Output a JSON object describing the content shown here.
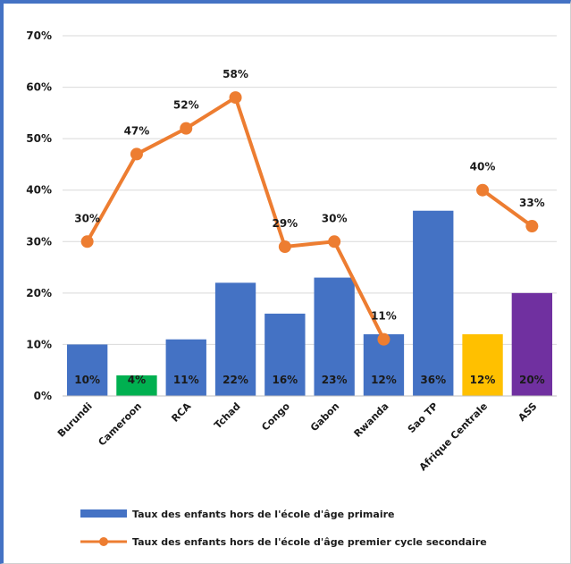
{
  "chart_data": {
    "type": "bar",
    "categories": [
      "Burundi",
      "Cameroon",
      "RCA",
      "Tchad",
      "Congo",
      "Gabon",
      "Rwanda",
      "Sao TP",
      "Afrique Centrale",
      "ASS"
    ],
    "ylim": [
      0,
      70
    ],
    "yticks": [
      "0%",
      "10%",
      "20%",
      "30%",
      "40%",
      "50%",
      "60%",
      "70%"
    ],
    "grid": true,
    "legend_position": "bottom",
    "series": [
      {
        "name": "Taux des enfants hors de l'école d'âge primaire",
        "type": "bar",
        "values": [
          10,
          4,
          11,
          22,
          16,
          23,
          12,
          36,
          12,
          20
        ],
        "labels": [
          "10%",
          "4%",
          "11%",
          "22%",
          "16%",
          "23%",
          "12%",
          "36%",
          "12%",
          "20%"
        ],
        "colors": [
          "#4472c4",
          "#00b050",
          "#4472c4",
          "#4472c4",
          "#4472c4",
          "#4472c4",
          "#4472c4",
          "#4472c4",
          "#ffc000",
          "#7030a0"
        ]
      },
      {
        "name": "Taux des enfants hors de l'école d'âge premier cycle secondaire",
        "type": "line",
        "color": "#ed7d31",
        "values": [
          30,
          47,
          52,
          58,
          29,
          30,
          11,
          null,
          40,
          33
        ],
        "labels": [
          "30%",
          "47%",
          "52%",
          "58%",
          "29%",
          "30%",
          "11%",
          "",
          "40%",
          "33%"
        ]
      }
    ]
  }
}
